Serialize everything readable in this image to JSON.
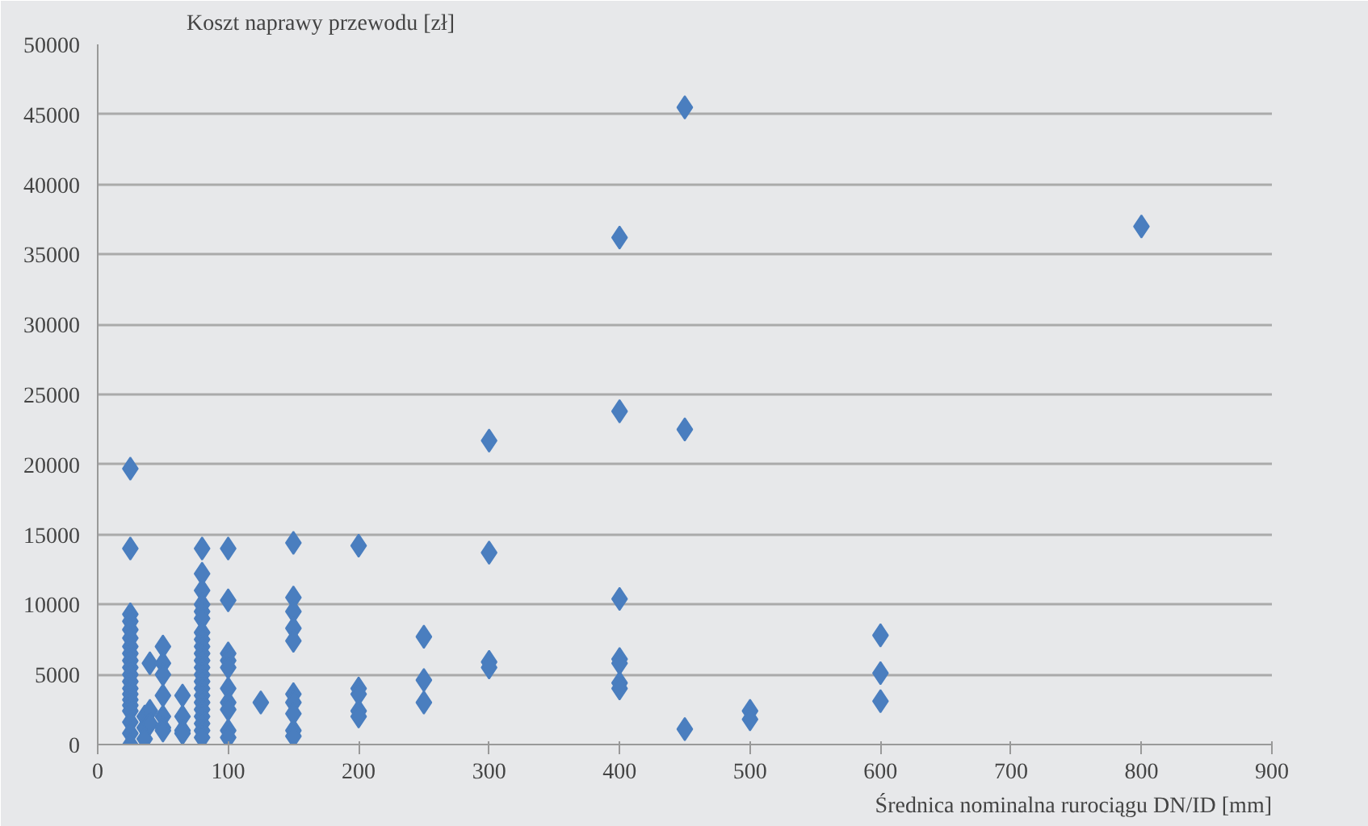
{
  "chart_data": {
    "type": "scatter",
    "ylabel": "Koszt naprawy przewodu [zł]",
    "xlabel": "Średnica nominalna rurociągu DN/ID [mm]",
    "marker": "diamond",
    "grid": "y",
    "xlim": [
      0,
      900
    ],
    "ylim": [
      0,
      50000
    ],
    "xticks": [
      0,
      100,
      200,
      300,
      400,
      500,
      600,
      700,
      800,
      900
    ],
    "yticks": [
      0,
      5000,
      10000,
      15000,
      20000,
      25000,
      30000,
      35000,
      40000,
      45000,
      50000
    ],
    "series": [
      {
        "color": "#4a7ebf",
        "x": [
          25,
          25,
          25,
          25,
          25,
          25,
          25,
          25,
          25,
          25,
          25,
          25,
          25,
          25,
          25,
          25,
          25,
          25,
          25,
          25,
          36,
          36,
          36,
          40,
          40,
          40,
          50,
          50,
          50,
          50,
          50,
          50,
          50,
          65,
          65,
          65,
          65,
          80,
          80,
          80,
          80,
          80,
          80,
          80,
          80,
          80,
          80,
          80,
          80,
          80,
          80,
          80,
          80,
          80,
          80,
          80,
          80,
          80,
          80,
          100,
          100,
          100,
          100,
          100,
          100,
          100,
          100,
          100,
          100,
          125,
          150,
          150,
          150,
          150,
          150,
          150,
          150,
          150,
          150,
          150,
          200,
          200,
          200,
          200,
          200,
          250,
          250,
          250,
          300,
          300,
          300,
          300,
          400,
          400,
          400,
          400,
          400,
          400,
          400,
          450,
          450,
          450,
          500,
          500,
          600,
          600,
          600,
          800
        ],
        "values": [
          19700,
          14000,
          9300,
          8800,
          8200,
          7600,
          7000,
          6500,
          6000,
          5500,
          5000,
          4500,
          4000,
          3600,
          3200,
          2800,
          2400,
          1600,
          800,
          0,
          2000,
          1200,
          400,
          5800,
          2400,
          1500,
          7000,
          5800,
          5000,
          3500,
          2000,
          1200,
          1000,
          3500,
          2000,
          1000,
          800,
          14000,
          12200,
          11000,
          10000,
          9500,
          9000,
          8000,
          7500,
          7000,
          6500,
          6000,
          5500,
          5000,
          4500,
          4000,
          3500,
          3000,
          2500,
          2000,
          1500,
          1000,
          500,
          14000,
          10300,
          6500,
          6000,
          5500,
          4000,
          3000,
          2500,
          1000,
          500,
          3000,
          14400,
          10500,
          9500,
          8300,
          7400,
          3600,
          3000,
          2200,
          1000,
          600,
          14200,
          4000,
          3600,
          2400,
          2000,
          7700,
          4600,
          3000,
          21700,
          13700,
          5900,
          5500,
          36200,
          23800,
          10400,
          6100,
          5800,
          4400,
          4000,
          45500,
          22500,
          1100,
          2400,
          1800,
          7800,
          5100,
          3100,
          37000
        ]
      }
    ]
  }
}
